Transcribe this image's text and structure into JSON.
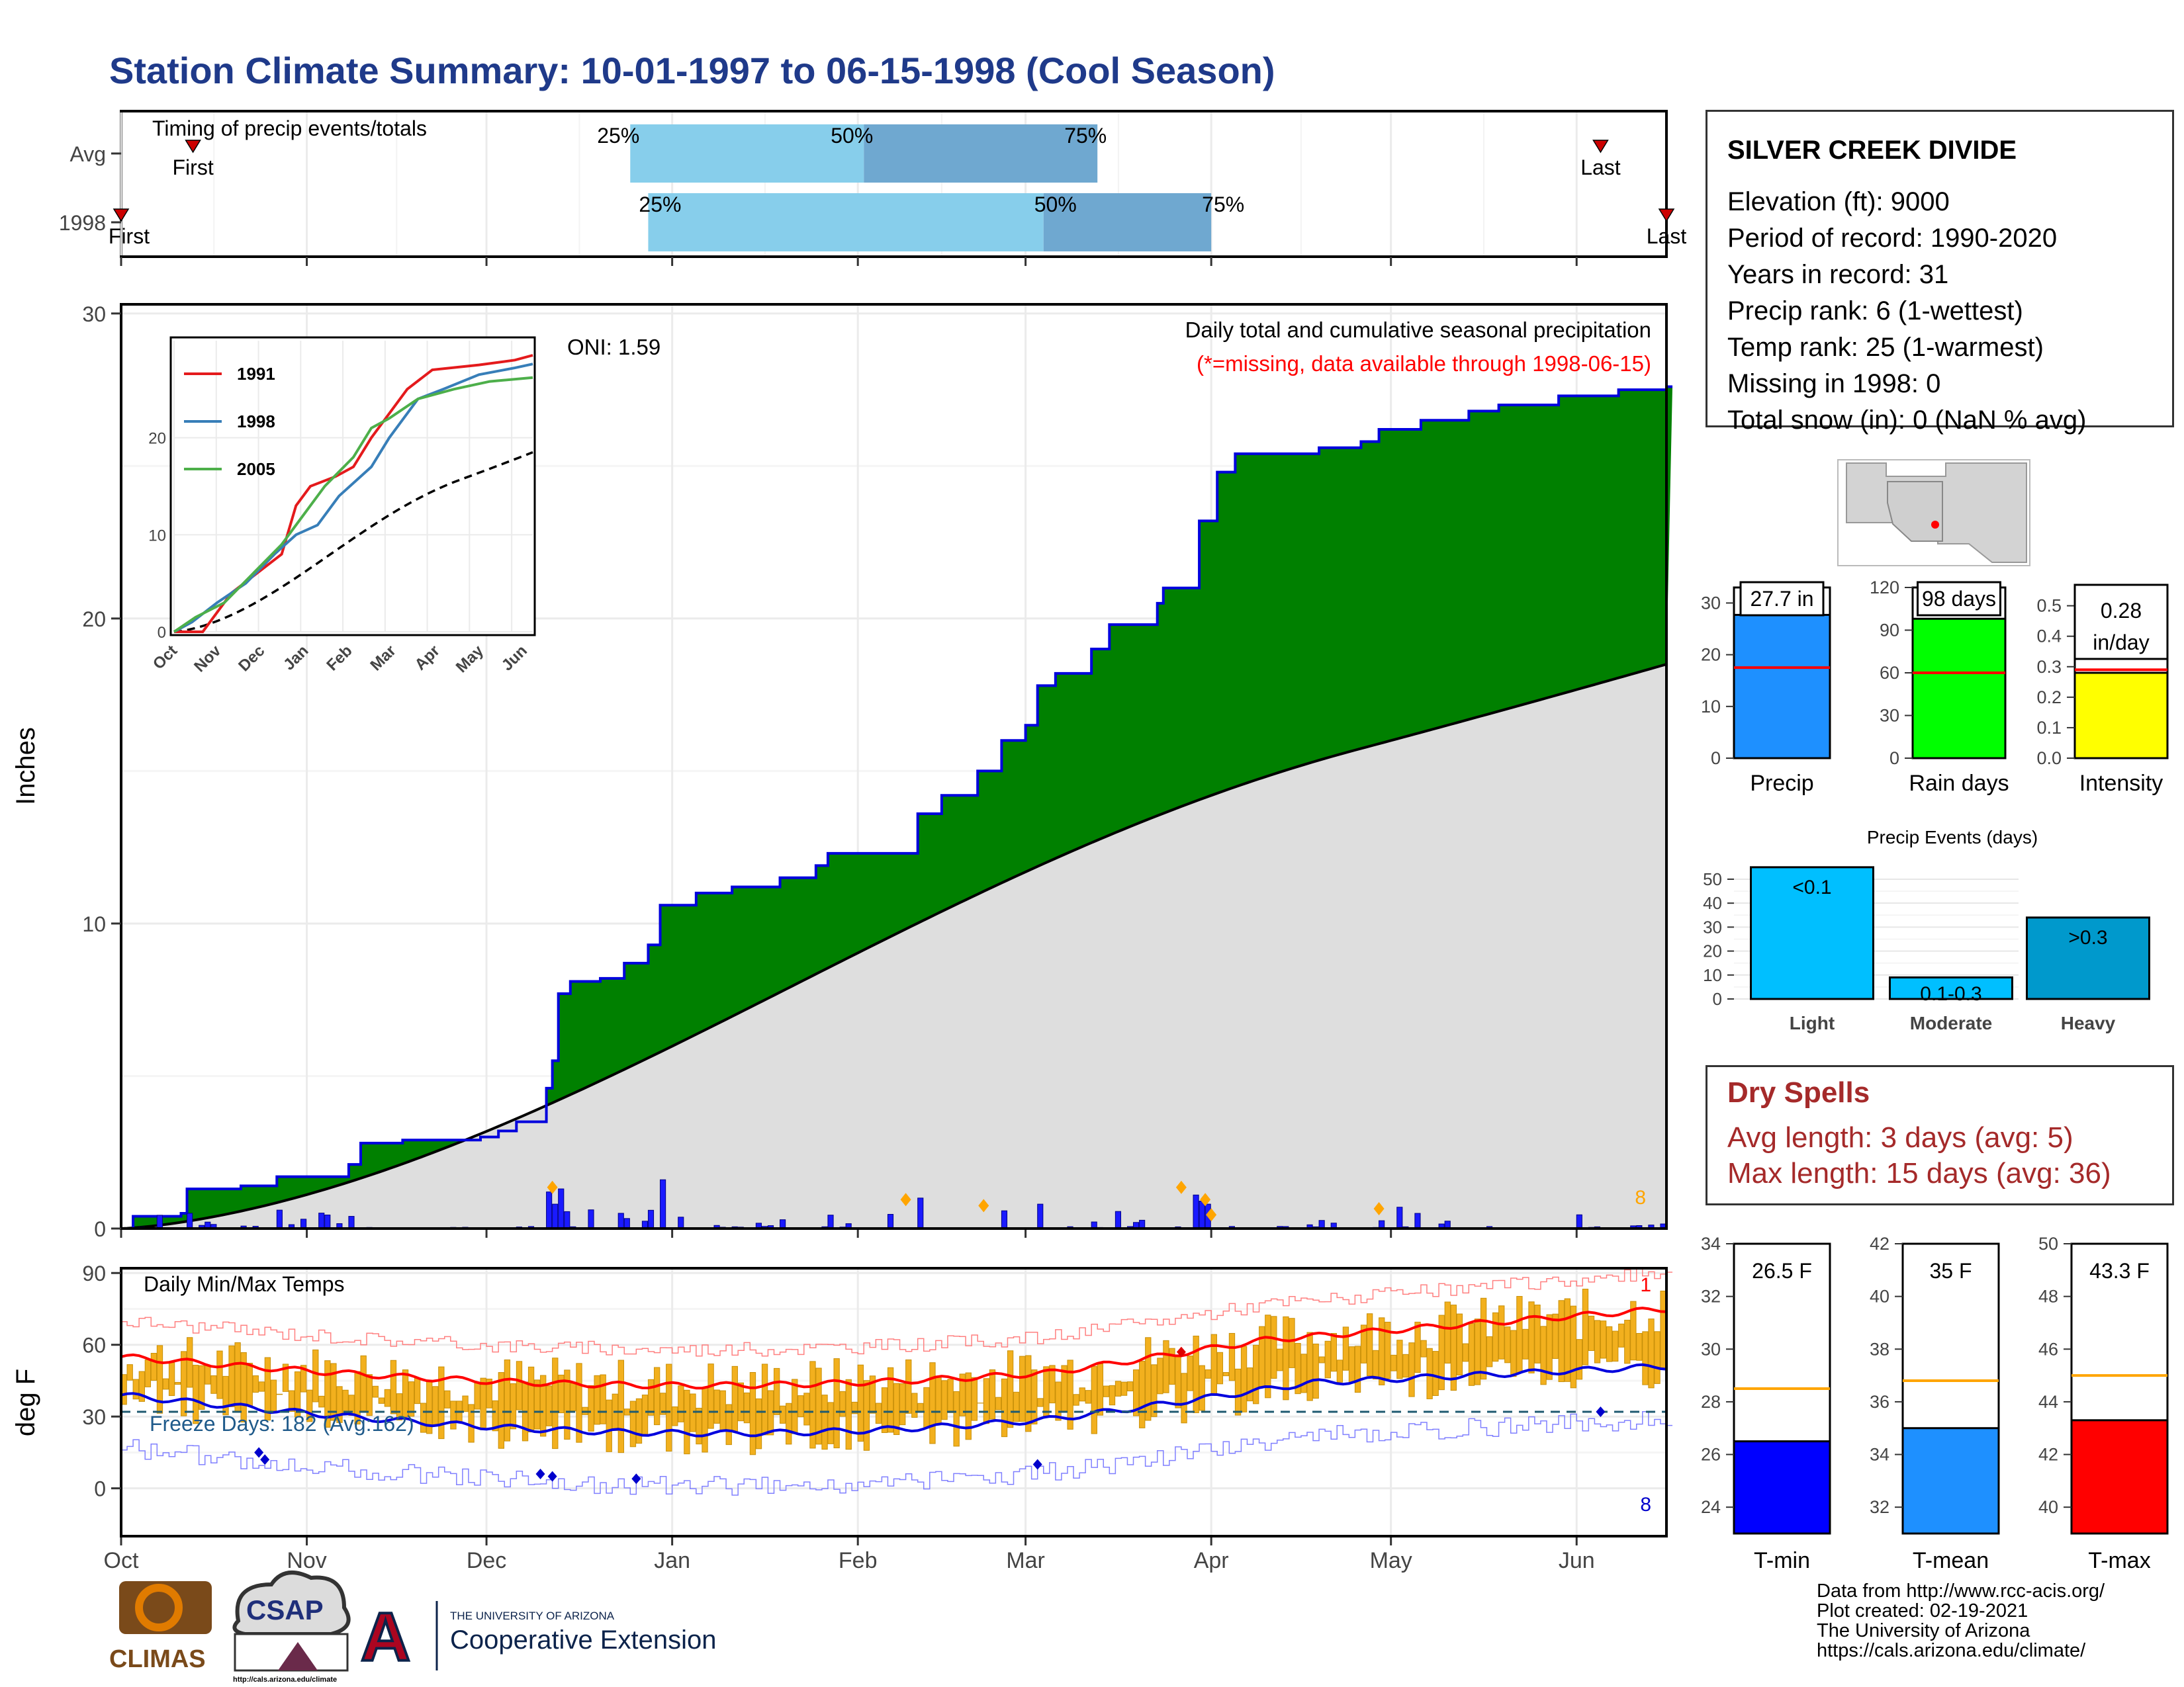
{
  "title": "Station Climate Summary: 10-01-1997 to 06-15-1998 (Cool Season)",
  "timing_panel": {
    "label": "Timing of precip events/totals",
    "rows": [
      {
        "name": "Avg",
        "first_label": "First",
        "last_label": "Last",
        "first_day": 12,
        "last_day": 247,
        "p25_day": 85,
        "p50_day": 124,
        "p75_day": 163
      },
      {
        "name": "1998",
        "first_label": "First",
        "last_label": "Last",
        "first_day": 0,
        "last_day": 258,
        "p25_day": 88,
        "p50_day": 154,
        "p75_day": 182
      }
    ],
    "pct_labels": [
      "25%",
      "50%",
      "75%"
    ],
    "colors": {
      "light": "#87ceeb",
      "dark": "#6fa8d0",
      "marker": "#cc0000"
    }
  },
  "main_panel": {
    "title": "Daily total and cumulative seasonal precipitation",
    "subtitle": "(*=missing, data available through 1998-06-15)",
    "ylabel": "Inches",
    "yticks": [
      "0",
      "10",
      "20",
      "30"
    ],
    "ylim": [
      0,
      30
    ],
    "oni_label": "ONI: 1.59",
    "corner_count": "8",
    "colors": {
      "cum_fill": "#008000",
      "cum_line": "#0000dd",
      "avg_fill": "#dedede",
      "avg_line": "#000000",
      "daily_bar": "#1a1aff",
      "marker": "#ffa500"
    }
  },
  "inset": {
    "yticks": [
      "0",
      "10",
      "20"
    ],
    "months": [
      "Oct",
      "Nov",
      "Dec",
      "Jan",
      "Feb",
      "Mar",
      "Apr",
      "May",
      "Jun"
    ],
    "legend": [
      {
        "name": "1991",
        "color": "#e41a1c"
      },
      {
        "name": "1998",
        "color": "#377eb8"
      },
      {
        "name": "2005",
        "color": "#4daf4a"
      }
    ]
  },
  "temp_panel": {
    "title": "Daily Min/Max Temps",
    "ylabel": "deg F",
    "yticks": [
      "0",
      "30",
      "60",
      "90"
    ],
    "ylim": [
      -20,
      90
    ],
    "freeze_label": "Freeze Days: 182 (Avg:162)",
    "count_top": "1",
    "count_bottom": "8",
    "colors": {
      "bar": "#f2b01e",
      "bar_edge": "#c8900a",
      "avg_max": "#ff0000",
      "avg_min": "#0000dd",
      "rec_max": "#ff8080",
      "rec_min": "#8080ff",
      "freeze": "#1f5a70"
    }
  },
  "x_months": [
    "Oct",
    "Nov",
    "Dec",
    "Jan",
    "Feb",
    "Mar",
    "Apr",
    "May",
    "Jun"
  ],
  "station": {
    "name": "SILVER CREEK DIVIDE",
    "lines": [
      "Elevation (ft): 9000",
      "Period of record: 1990-2020",
      "Years in record: 31",
      "Precip rank: 6 (1-wettest)",
      "Temp rank: 25 (1-warmest)",
      "Missing in 1998: 0",
      "Total snow (in): 0 (NaN % avg)"
    ]
  },
  "summary_bars": [
    {
      "name": "Precip",
      "label": "27.7 in",
      "value": 27.7,
      "avg": 17.5,
      "ymax": 33,
      "yticks": [
        "0",
        "10",
        "20",
        "30"
      ],
      "color": "#1e90ff"
    },
    {
      "name": "Rain days",
      "label": "98 days",
      "value": 98,
      "avg": 60,
      "ymax": 120,
      "yticks": [
        "0",
        "30",
        "60",
        "90",
        "120"
      ],
      "color": "#00ff00"
    },
    {
      "name": "Intensity",
      "label_lines": [
        "0.28",
        "in/day"
      ],
      "value": 0.28,
      "avg": 0.29,
      "ymax": 0.56,
      "yticks": [
        "0.0",
        "0.1",
        "0.2",
        "0.3",
        "0.4",
        "0.5"
      ],
      "color": "#ffff00"
    }
  ],
  "events_chart": {
    "title": "Precip Events (days)",
    "yticks": [
      "0",
      "10",
      "20",
      "30",
      "40",
      "50"
    ],
    "categories": [
      "Light",
      "Moderate",
      "Heavy"
    ],
    "values": [
      55,
      9,
      34
    ],
    "bar_labels": [
      "<0.1",
      "0.1-0.3",
      ">0.3"
    ],
    "colors": [
      "#00bfff",
      "#00bfff",
      "#0099cc"
    ]
  },
  "dry_spells": {
    "title": "Dry Spells",
    "lines": [
      "Avg length: 3 days (avg: 5)",
      "Max length: 15 days (avg: 36)"
    ]
  },
  "temp_bars": [
    {
      "name": "T-min",
      "label": "26.5 F",
      "value": 26.5,
      "avg": 28.5,
      "ymin": 23,
      "ymax": 34,
      "yticks": [
        "24",
        "26",
        "28",
        "30",
        "32",
        "34"
      ],
      "color": "#0000ff"
    },
    {
      "name": "T-mean",
      "label": "35 F",
      "value": 35,
      "avg": 36.8,
      "ymin": 31,
      "ymax": 42,
      "yticks": [
        "32",
        "34",
        "36",
        "38",
        "40",
        "42"
      ],
      "color": "#1e90ff"
    },
    {
      "name": "T-max",
      "label": "43.3 F",
      "value": 43.3,
      "avg": 45,
      "ymin": 39,
      "ymax": 50,
      "yticks": [
        "40",
        "42",
        "44",
        "46",
        "48",
        "50"
      ],
      "color": "#ff0000"
    }
  ],
  "logos": {
    "climas": "CLIMAS",
    "csap": "CSAP",
    "csap_url": "http://cals.arizona.edu/climate",
    "ua_small": "THE UNIVERSITY OF ARIZONA",
    "ua_big": "Cooperative Extension"
  },
  "credits": [
    "Data from http://www.rcc-acis.org/",
    "Plot created: 02-19-2021",
    "The University of Arizona",
    "https://cals.arizona.edu/climate/"
  ]
}
